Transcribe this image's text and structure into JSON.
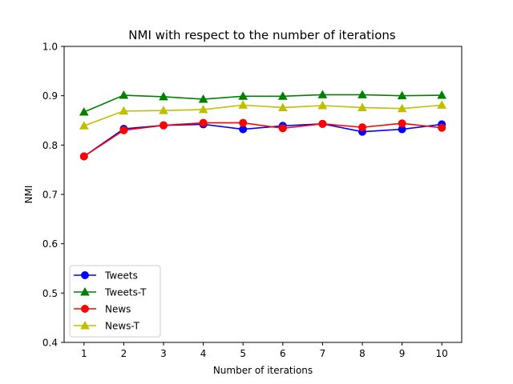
{
  "chart_data": {
    "type": "line",
    "title": "NMI with respect to the number of iterations",
    "xlabel": "Number of iterations",
    "ylabel": "NMI",
    "x": [
      1,
      2,
      3,
      4,
      5,
      6,
      7,
      8,
      9,
      10
    ],
    "xlim": [
      0.5,
      10.5
    ],
    "ylim": [
      0.4,
      1.0
    ],
    "yticks": [
      "0.4",
      "0.5",
      "0.6",
      "0.7",
      "0.8",
      "0.9",
      "1.0"
    ],
    "xticks": [
      "1",
      "2",
      "3",
      "4",
      "5",
      "6",
      "7",
      "8",
      "9",
      "10"
    ],
    "grid": false,
    "legend_position": "lower-left",
    "series": [
      {
        "name": "Tweets",
        "color": "#0000ff",
        "marker": "circle",
        "values": [
          0.777,
          0.833,
          0.84,
          0.842,
          0.832,
          0.839,
          0.843,
          0.827,
          0.832,
          0.842
        ]
      },
      {
        "name": "Tweets-T",
        "color": "#008000",
        "marker": "triangle",
        "values": [
          0.867,
          0.901,
          0.898,
          0.893,
          0.899,
          0.899,
          0.902,
          0.902,
          0.9,
          0.901
        ]
      },
      {
        "name": "News",
        "color": "#ff0000",
        "marker": "circle",
        "values": [
          0.777,
          0.83,
          0.84,
          0.845,
          0.845,
          0.834,
          0.843,
          0.836,
          0.844,
          0.835
        ]
      },
      {
        "name": "News-T",
        "color": "#bfbf00",
        "marker": "triangle",
        "values": [
          0.839,
          0.869,
          0.87,
          0.872,
          0.881,
          0.876,
          0.88,
          0.876,
          0.874,
          0.881
        ]
      }
    ]
  }
}
